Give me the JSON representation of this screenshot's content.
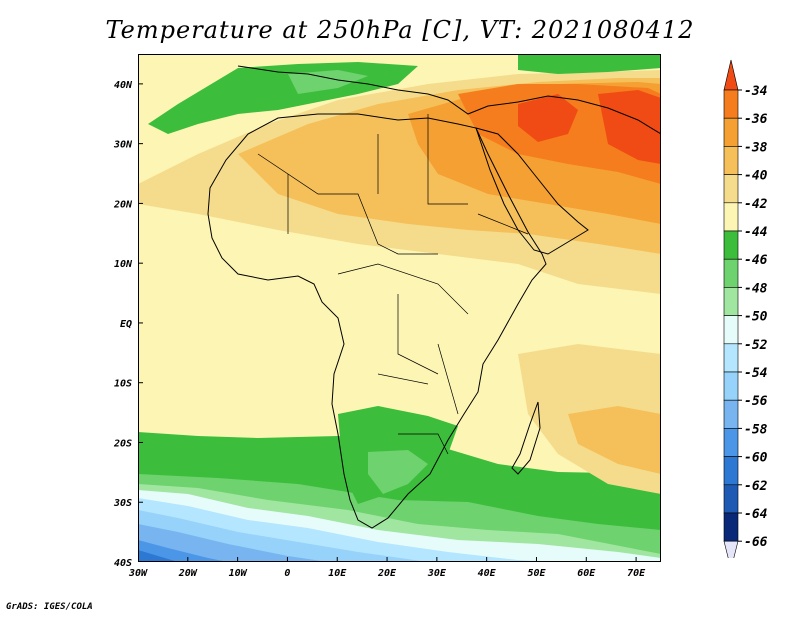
{
  "title": "Temperature at 250hPa [C], VT: 2021080412",
  "credit": "GrADS: IGES/COLA",
  "map": {
    "lon_range": [
      -30,
      75
    ],
    "lat_range": [
      -40,
      45
    ],
    "lon_ticks": [
      {
        "label": "30W",
        "value": -30
      },
      {
        "label": "20W",
        "value": -20
      },
      {
        "label": "10W",
        "value": -10
      },
      {
        "label": "0",
        "value": 0
      },
      {
        "label": "10E",
        "value": 10
      },
      {
        "label": "20E",
        "value": 20
      },
      {
        "label": "30E",
        "value": 30
      },
      {
        "label": "40E",
        "value": 40
      },
      {
        "label": "50E",
        "value": 50
      },
      {
        "label": "60E",
        "value": 60
      },
      {
        "label": "70E",
        "value": 70
      }
    ],
    "lat_ticks": [
      {
        "label": "40N",
        "value": 40
      },
      {
        "label": "30N",
        "value": 30
      },
      {
        "label": "20N",
        "value": 20
      },
      {
        "label": "10N",
        "value": 10
      },
      {
        "label": "EQ",
        "value": 0
      },
      {
        "label": "10S",
        "value": -10
      },
      {
        "label": "20S",
        "value": -20
      },
      {
        "label": "30S",
        "value": -30
      },
      {
        "label": "40S",
        "value": -40
      }
    ]
  },
  "colorbar": {
    "levels": [
      "-34",
      "-36",
      "-38",
      "-40",
      "-42",
      "-44",
      "-46",
      "-48",
      "-50",
      "-52",
      "-54",
      "-56",
      "-58",
      "-60",
      "-62",
      "-64",
      "-66"
    ],
    "colors": [
      "#f04b14",
      "#f57d1e",
      "#f5a032",
      "#f5c05a",
      "#f5dc8c",
      "#fdf5b4",
      "#3cbe3c",
      "#6ed26e",
      "#a0e6a0",
      "#e6fcfa",
      "#b4e6ff",
      "#96d2fa",
      "#78b4f0",
      "#4b96e6",
      "#2d78d2",
      "#1e5ab4",
      "#0a2878",
      "#e6e6fa"
    ],
    "arrow_top_color": "#f04b14",
    "arrow_bottom_color": "#e6e6fa"
  }
}
